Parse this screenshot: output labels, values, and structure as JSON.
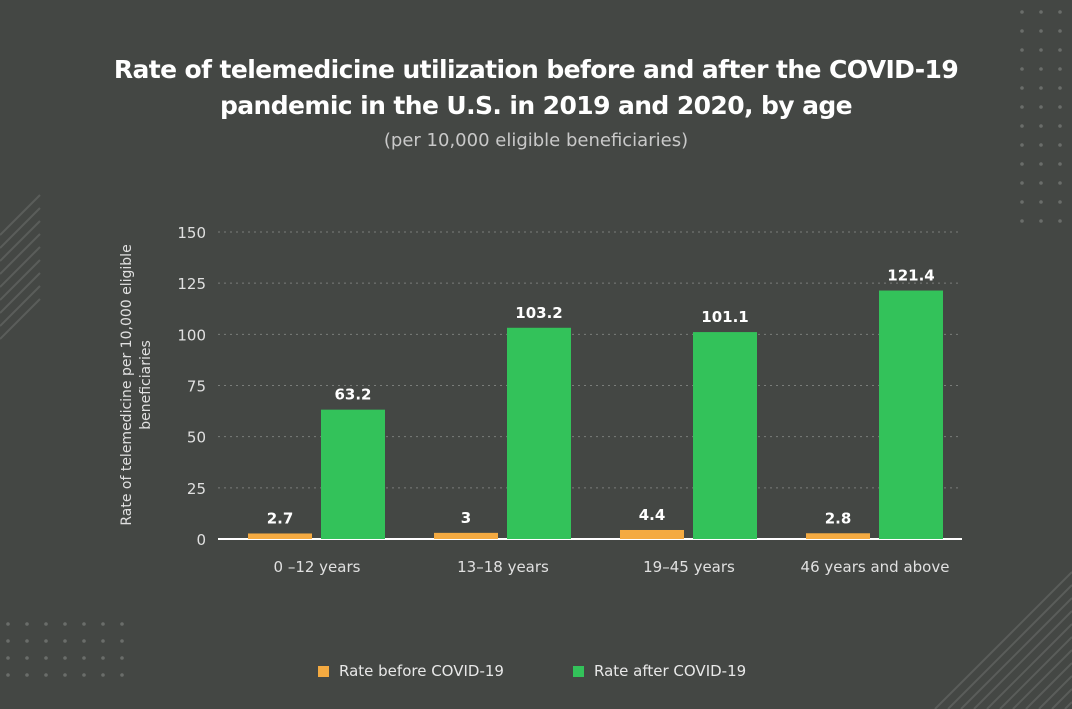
{
  "title_line1": "Rate of telemedicine utilization before and after the COVID-19",
  "title_line2": "pandemic in the U.S. in 2019 and 2020, by age",
  "subtitle": "(per 10,000 eligible beneficiaries)",
  "colors": {
    "background": "#444744",
    "before": "#f4aa41",
    "after": "#33c25a",
    "text": "#ffffff",
    "axis_text": "#e0e0e0",
    "grid": "#7a7d7a"
  },
  "chart_data": {
    "type": "bar",
    "ylabel": "Rate of telemedicine per 10,000 eligible beneficiaries",
    "ylabel_lines": [
      "Rate of telemedicine per 10,000 eligible",
      "beneficiaries"
    ],
    "categories": [
      "0 –12 years",
      "13–18 years",
      "19–45 years",
      "46 years and above"
    ],
    "series": [
      {
        "name": "Rate before COVID-19",
        "values": [
          2.7,
          3,
          4.4,
          2.8
        ],
        "labels": [
          "2.7",
          "3",
          "4.4",
          "2.8"
        ]
      },
      {
        "name": "Rate after COVID-19",
        "values": [
          63.2,
          103.2,
          101.1,
          121.4
        ],
        "labels": [
          "63.2",
          "103.2",
          "101.1",
          "121.4"
        ]
      }
    ],
    "yticks": [
      0,
      25,
      50,
      75,
      100,
      125,
      150
    ],
    "ylim": [
      0,
      150
    ],
    "grid": true,
    "legend_position": "bottom"
  }
}
